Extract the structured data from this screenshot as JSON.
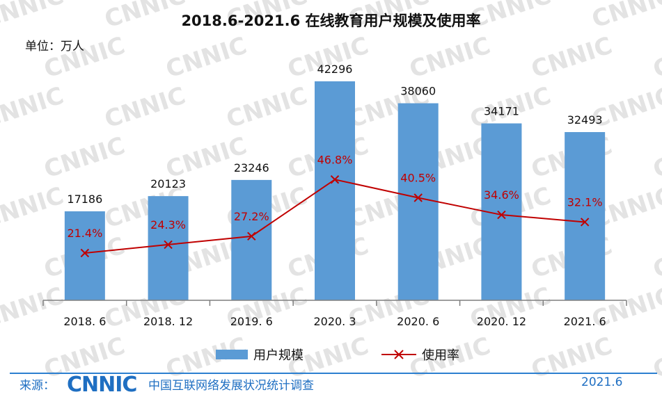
{
  "title": "2018.6-2021.6 在线教育用户规模及使用率",
  "unit_label": "单位：万人",
  "watermark_text": "CNNIC",
  "colors": {
    "bar": "#5b9bd5",
    "line": "#c00000",
    "axis": "#7f7f7f",
    "footer": "#1f6fc2",
    "watermark": "#e3e3e3"
  },
  "chart_data": {
    "type": "bar",
    "categories": [
      "2018. 6",
      "2018. 12",
      "2019. 6",
      "2020. 3",
      "2020. 6",
      "2020. 12",
      "2021. 6"
    ],
    "series": [
      {
        "name": "用户规模",
        "type": "bar",
        "values": [
          17186,
          20123,
          23246,
          42296,
          38060,
          34171,
          32493
        ],
        "data_labels": [
          "17186",
          "20123",
          "23246",
          "42296",
          "38060",
          "34171",
          "32493"
        ]
      },
      {
        "name": "使用率",
        "type": "line",
        "values": [
          21.4,
          24.3,
          27.2,
          46.8,
          40.5,
          34.6,
          32.1
        ],
        "data_labels": [
          "21.4%",
          "24.3%",
          "27.2%",
          "46.8%",
          "40.5%",
          "34.6%",
          "32.1%"
        ]
      }
    ],
    "legend_position": "bottom",
    "grid": false
  },
  "footer": {
    "source_label": "来源：",
    "logo_text": "CNNIC",
    "org_name": "中国互联网络发展状况统计调查",
    "date": "2021.6"
  }
}
